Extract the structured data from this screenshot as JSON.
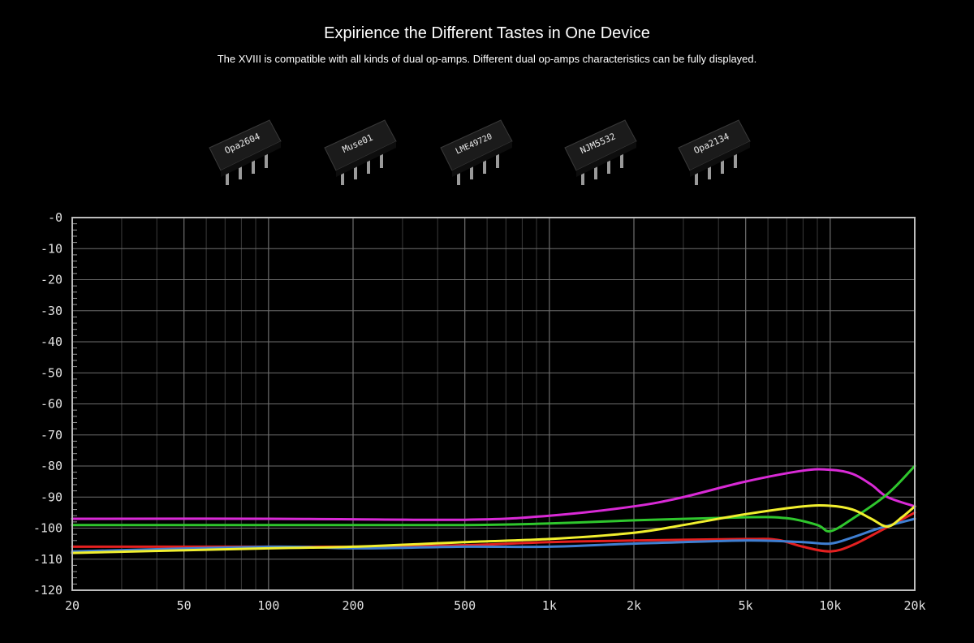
{
  "header": {
    "title": "Expirience the Different Tastes in One Device",
    "subtitle": "The XVIII is compatible with all kinds of dual op-amps. Different dual op-amps characteristics can be fully displayed."
  },
  "chips": [
    {
      "label": "Opa2604"
    },
    {
      "label": "Muse01"
    },
    {
      "label": "LME49720"
    },
    {
      "label": "NJM5532"
    },
    {
      "label": "Opa2134"
    }
  ],
  "chart_data": {
    "type": "line",
    "title": "",
    "xlabel": "",
    "ylabel": "",
    "xscale": "log",
    "xlim": [
      20,
      20000
    ],
    "ylim": [
      -120,
      0
    ],
    "grid": true,
    "xticks": [
      {
        "value": 20,
        "label": "20"
      },
      {
        "value": 50,
        "label": "50"
      },
      {
        "value": 100,
        "label": "100"
      },
      {
        "value": 200,
        "label": "200"
      },
      {
        "value": 500,
        "label": "500"
      },
      {
        "value": 1000,
        "label": "1k"
      },
      {
        "value": 2000,
        "label": "2k"
      },
      {
        "value": 5000,
        "label": "5k"
      },
      {
        "value": 10000,
        "label": "10k"
      },
      {
        "value": 20000,
        "label": "20k"
      }
    ],
    "yticks": [
      {
        "value": 0,
        "label": "-0"
      },
      {
        "value": -10,
        "label": "-10"
      },
      {
        "value": -20,
        "label": "-20"
      },
      {
        "value": -30,
        "label": "-30"
      },
      {
        "value": -40,
        "label": "-40"
      },
      {
        "value": -50,
        "label": "-50"
      },
      {
        "value": -60,
        "label": "-60"
      },
      {
        "value": -70,
        "label": "-70"
      },
      {
        "value": -80,
        "label": "-80"
      },
      {
        "value": -90,
        "label": "-90"
      },
      {
        "value": -100,
        "label": "-100"
      },
      {
        "value": -110,
        "label": "-110"
      },
      {
        "value": -120,
        "label": "-120"
      }
    ],
    "series": [
      {
        "name": "magenta",
        "color": "#d92ad6",
        "x": [
          20,
          100,
          500,
          1000,
          2000,
          3000,
          5000,
          8000,
          10000,
          12000,
          14000,
          16000,
          20000
        ],
        "y": [
          -97,
          -97,
          -97.3,
          -96,
          -93,
          -90,
          -85,
          -81.5,
          -81.2,
          -82.5,
          -86,
          -90,
          -93
        ]
      },
      {
        "name": "green",
        "color": "#2fc62d",
        "x": [
          20,
          100,
          500,
          1000,
          2000,
          5000,
          7000,
          9000,
          10000,
          12000,
          16000,
          20000
        ],
        "y": [
          -99,
          -99,
          -99,
          -98.5,
          -97.5,
          -96.5,
          -96.8,
          -99,
          -101,
          -97,
          -89,
          -80
        ]
      },
      {
        "name": "red",
        "color": "#e42020",
        "x": [
          20,
          50,
          100,
          200,
          500,
          1000,
          2000,
          5000,
          6500,
          8000,
          10000,
          12000,
          15000,
          20000
        ],
        "y": [
          -106,
          -106,
          -106,
          -106,
          -105.5,
          -104.5,
          -104,
          -103.5,
          -103.8,
          -106,
          -107.5,
          -105.5,
          -101,
          -95
        ]
      },
      {
        "name": "blue",
        "color": "#3f7fd2",
        "x": [
          20,
          100,
          200,
          500,
          1000,
          2000,
          5000,
          8000,
          10000,
          12000,
          15000,
          20000
        ],
        "y": [
          -107.5,
          -106,
          -106.5,
          -106,
          -106,
          -105,
          -104,
          -104.5,
          -105,
          -103,
          -100,
          -97
        ]
      },
      {
        "name": "yellow",
        "color": "#f1ef2e",
        "x": [
          20,
          100,
          200,
          500,
          1000,
          2000,
          3000,
          5000,
          8000,
          10000,
          12000,
          14000,
          16000,
          18000,
          20000
        ],
        "y": [
          -108,
          -106.5,
          -106,
          -104.5,
          -103.5,
          -101.5,
          -99,
          -95.5,
          -93,
          -92.8,
          -94,
          -97,
          -99.5,
          -96.5,
          -93
        ]
      }
    ]
  }
}
